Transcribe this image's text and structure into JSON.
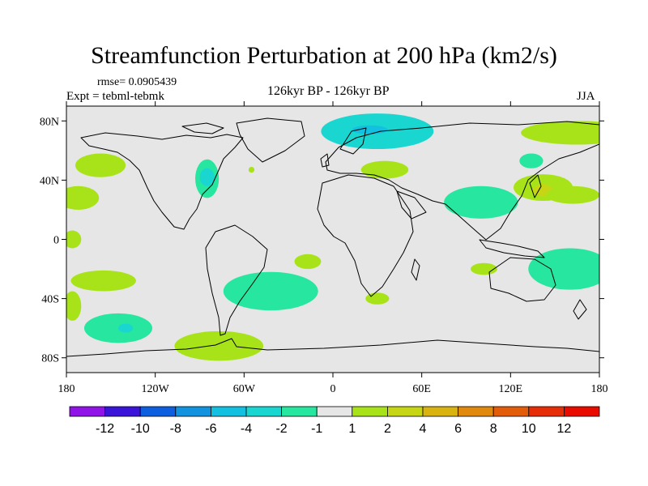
{
  "title": "Streamfunction Perturbation at 200 hPa (km2/s)",
  "rmse_label": "rmse= 0.0905439",
  "experiment_label": "Expt = tebml-tebmk",
  "period_label": "126kyr BP - 126kyr BP",
  "season_label": "JJA",
  "map": {
    "lat_range": [
      -90,
      90
    ],
    "lon_range": [
      -180,
      180
    ],
    "background_color": "#e6e6e6",
    "coastline_color": "#000000",
    "lat_ticks": [
      {
        "value": 80,
        "label": "80N"
      },
      {
        "value": 40,
        "label": "40N"
      },
      {
        "value": 0,
        "label": "0"
      },
      {
        "value": -40,
        "label": "40S"
      },
      {
        "value": -80,
        "label": "80S"
      }
    ],
    "lon_ticks": [
      {
        "value": -180,
        "label": "180"
      },
      {
        "value": -120,
        "label": "120W"
      },
      {
        "value": -60,
        "label": "60W"
      },
      {
        "value": 0,
        "label": "0"
      },
      {
        "value": 60,
        "label": "60E"
      },
      {
        "value": 120,
        "label": "120E"
      },
      {
        "value": 180,
        "label": "180"
      }
    ],
    "anomalies": [
      {
        "name": "arctic-russia",
        "level": "-2",
        "center_lon": 30,
        "center_lat": 73,
        "rx_deg": 38,
        "ry_deg": 12
      },
      {
        "name": "arctic-russia-core",
        "level": "-4",
        "center_lon": 25,
        "center_lat": 74,
        "rx_deg": 12,
        "ry_deg": 3
      },
      {
        "name": "north-pacific-ne",
        "level": "1",
        "center_lon": 165,
        "center_lat": 72,
        "rx_deg": 38,
        "ry_deg": 8
      },
      {
        "name": "alaska-gulf",
        "level": "1",
        "center_lon": -157,
        "center_lat": 50,
        "rx_deg": 17,
        "ry_deg": 8
      },
      {
        "name": "central-north-pacific",
        "level": "1",
        "center_lon": -172,
        "center_lat": 28,
        "rx_deg": 14,
        "ry_deg": 8
      },
      {
        "name": "north-america",
        "level": "-1",
        "center_lon": -85,
        "center_lat": 41,
        "rx_deg": 8,
        "ry_deg": 13
      },
      {
        "name": "north-america-core",
        "level": "-2",
        "center_lon": -85,
        "center_lat": 42,
        "rx_deg": 5,
        "ry_deg": 6
      },
      {
        "name": "newfoundland",
        "level": "1",
        "center_lon": -55,
        "center_lat": 47,
        "rx_deg": 2,
        "ry_deg": 2
      },
      {
        "name": "black-sea",
        "level": "1",
        "center_lon": 35,
        "center_lat": 47,
        "rx_deg": 16,
        "ry_deg": 6
      },
      {
        "name": "south-asia",
        "level": "-1",
        "center_lon": 100,
        "center_lat": 25,
        "rx_deg": 25,
        "ry_deg": 11
      },
      {
        "name": "east-asia",
        "level": "1",
        "center_lon": 142,
        "center_lat": 35,
        "rx_deg": 20,
        "ry_deg": 9
      },
      {
        "name": "japan-core",
        "level": "2",
        "center_lon": 142,
        "center_lat": 33,
        "rx_deg": 7,
        "ry_deg": 4
      },
      {
        "name": "japan-north",
        "level": "-1",
        "center_lon": 134,
        "center_lat": 53,
        "rx_deg": 8,
        "ry_deg": 5
      },
      {
        "name": "west-pacific",
        "level": "1",
        "center_lon": 162,
        "center_lat": 30,
        "rx_deg": 18,
        "ry_deg": 6
      },
      {
        "name": "south-pacific-west",
        "level": "1",
        "center_lon": -155,
        "center_lat": -28,
        "rx_deg": 22,
        "ry_deg": 7
      },
      {
        "name": "far-south-pacific",
        "level": "1",
        "center_lon": -176,
        "center_lat": -45,
        "rx_deg": 6,
        "ry_deg": 10
      },
      {
        "name": "south-pacific-trough",
        "level": "-1",
        "center_lon": -145,
        "center_lat": -60,
        "rx_deg": 23,
        "ry_deg": 10
      },
      {
        "name": "south-pacific-core",
        "level": "-2",
        "center_lon": -140,
        "center_lat": -60,
        "rx_deg": 5,
        "ry_deg": 3
      },
      {
        "name": "southern-south-america",
        "level": "1",
        "center_lon": -77,
        "center_lat": -72,
        "rx_deg": 30,
        "ry_deg": 10
      },
      {
        "name": "south-atlantic",
        "level": "-1",
        "center_lon": -42,
        "center_lat": -35,
        "rx_deg": 32,
        "ry_deg": 13
      },
      {
        "name": "south-atlantic-east",
        "level": "1",
        "center_lon": -17,
        "center_lat": -15,
        "rx_deg": 9,
        "ry_deg": 5
      },
      {
        "name": "south-africa",
        "level": "1",
        "center_lon": 30,
        "center_lat": -40,
        "rx_deg": 8,
        "ry_deg": 4
      },
      {
        "name": "indian-ocean",
        "level": "1",
        "center_lon": 102,
        "center_lat": -20,
        "rx_deg": 9,
        "ry_deg": 4
      },
      {
        "name": "australia",
        "level": "-1",
        "center_lon": 160,
        "center_lat": -20,
        "rx_deg": 28,
        "ry_deg": 14
      },
      {
        "name": "equatorial-east-pacific",
        "level": "1",
        "center_lon": -176,
        "center_lat": 0,
        "rx_deg": 6,
        "ry_deg": 6
      }
    ]
  },
  "colorbar": {
    "colors": [
      "#9013e8",
      "#3a14d8",
      "#0d5fe0",
      "#1193e0",
      "#13c0e0",
      "#19d6d0",
      "#27e6a0",
      "#e6e6e6",
      "#a8e31a",
      "#c7d614",
      "#d9b411",
      "#e0890c",
      "#e25c0a",
      "#e52e08",
      "#ea0b00"
    ],
    "labels": [
      "-12",
      "-10",
      "-8",
      "-6",
      "-4",
      "-2",
      "-1",
      "1",
      "2",
      "4",
      "6",
      "8",
      "10",
      "12"
    ]
  },
  "contour_colors": {
    "-4": "#13c0e0",
    "-2": "#19d6d0",
    "-1": "#27e6a0",
    "1": "#a8e31a",
    "2": "#c7d614"
  }
}
